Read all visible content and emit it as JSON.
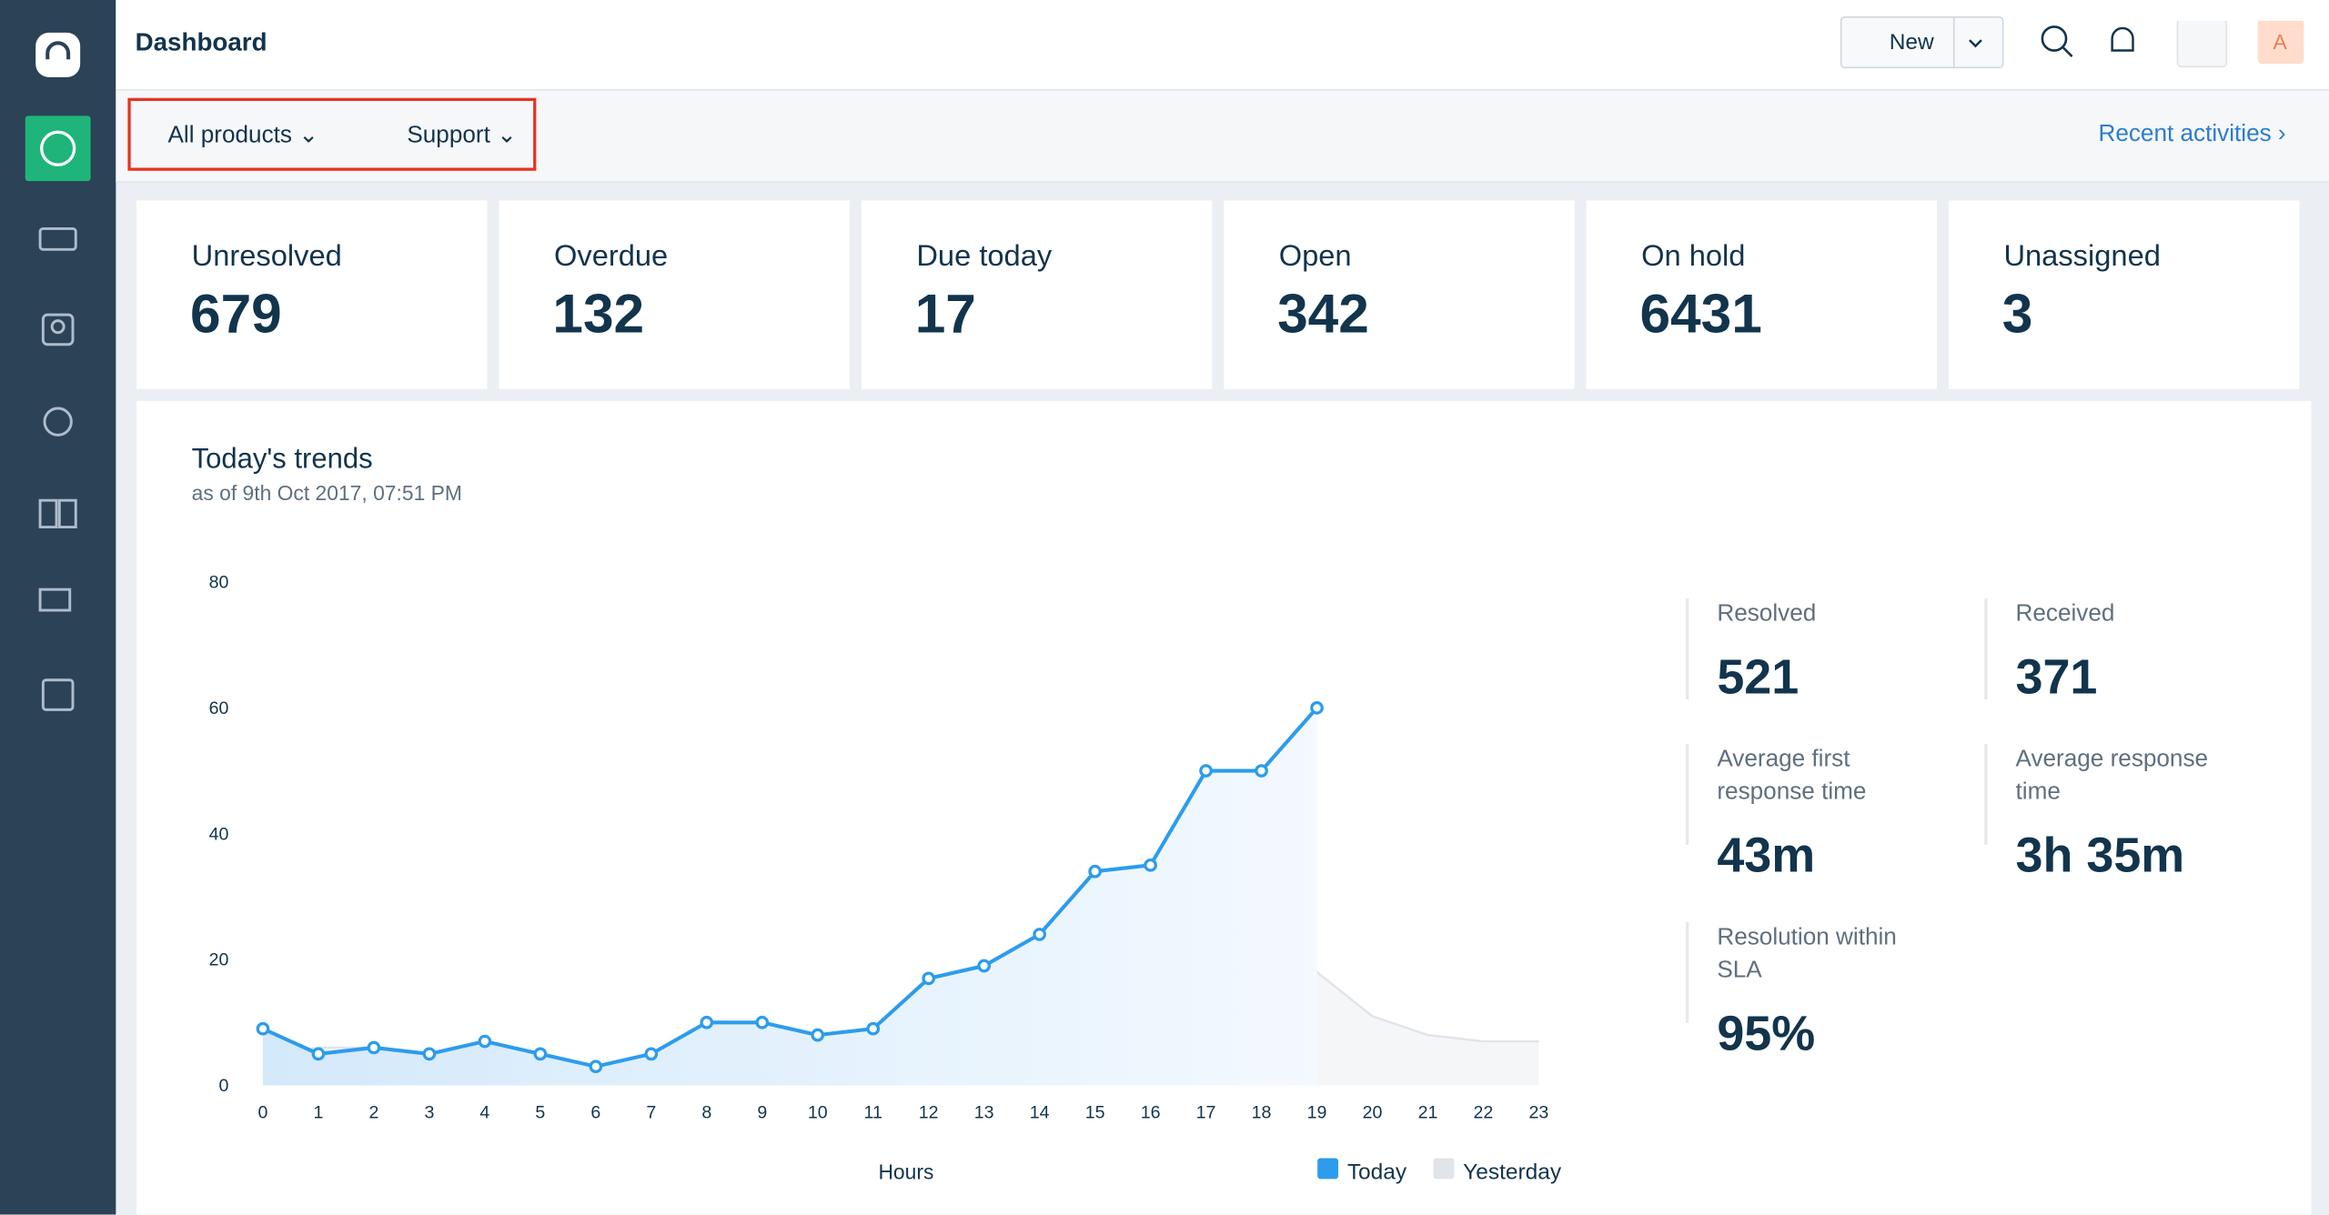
{
  "header": {
    "title": "Dashboard",
    "new_button": "New",
    "avatar": "A"
  },
  "filters": {
    "product": "All products",
    "group": "Support",
    "recent_activities": "Recent activities"
  },
  "stats": [
    {
      "label": "Unresolved",
      "value": "679"
    },
    {
      "label": "Overdue",
      "value": "132"
    },
    {
      "label": "Due today",
      "value": "17"
    },
    {
      "label": "Open",
      "value": "342"
    },
    {
      "label": "On hold",
      "value": "6431"
    },
    {
      "label": "Unassigned",
      "value": "3"
    }
  ],
  "trends": {
    "title": "Today's trends",
    "subtitle": "as of 9th Oct 2017, 07:51 PM"
  },
  "metrics": [
    {
      "label": "Resolved",
      "value": "521"
    },
    {
      "label": "Received",
      "value": "371"
    },
    {
      "label": "Average first response time",
      "value": "43m"
    },
    {
      "label": "Average response time",
      "value": "3h 35m"
    },
    {
      "label": "Resolution within SLA",
      "value": "95%"
    }
  ],
  "chart_data": {
    "type": "line",
    "x_label": "Hours",
    "x": [
      0,
      1,
      2,
      3,
      4,
      5,
      6,
      7,
      8,
      9,
      10,
      11,
      12,
      13,
      14,
      15,
      16,
      17,
      18,
      19,
      20,
      21,
      22,
      23
    ],
    "xlim": [
      0,
      23
    ],
    "xticks": [
      0,
      1,
      2,
      3,
      4,
      5,
      6,
      7,
      8,
      9,
      10,
      11,
      12,
      13,
      14,
      15,
      16,
      17,
      18,
      19,
      20,
      21,
      22,
      23
    ],
    "ylim": [
      0,
      80
    ],
    "yticks": [
      0,
      20,
      40,
      60,
      80
    ],
    "grid": false,
    "series": [
      {
        "name": "Today",
        "color": "#2d9cec",
        "values": [
          9,
          5,
          6,
          5,
          7,
          5,
          3,
          5,
          10,
          10,
          8,
          9,
          17,
          19,
          24,
          34,
          35,
          50,
          50,
          60,
          null,
          null,
          null,
          null
        ]
      },
      {
        "name": "Yesterday",
        "color": "#e1e4e8",
        "values": [
          5,
          6,
          6,
          5,
          6,
          4,
          2,
          1,
          1,
          1,
          2,
          6,
          1,
          5,
          4,
          4,
          1,
          3,
          11,
          18,
          11,
          8,
          7,
          7
        ]
      }
    ]
  }
}
